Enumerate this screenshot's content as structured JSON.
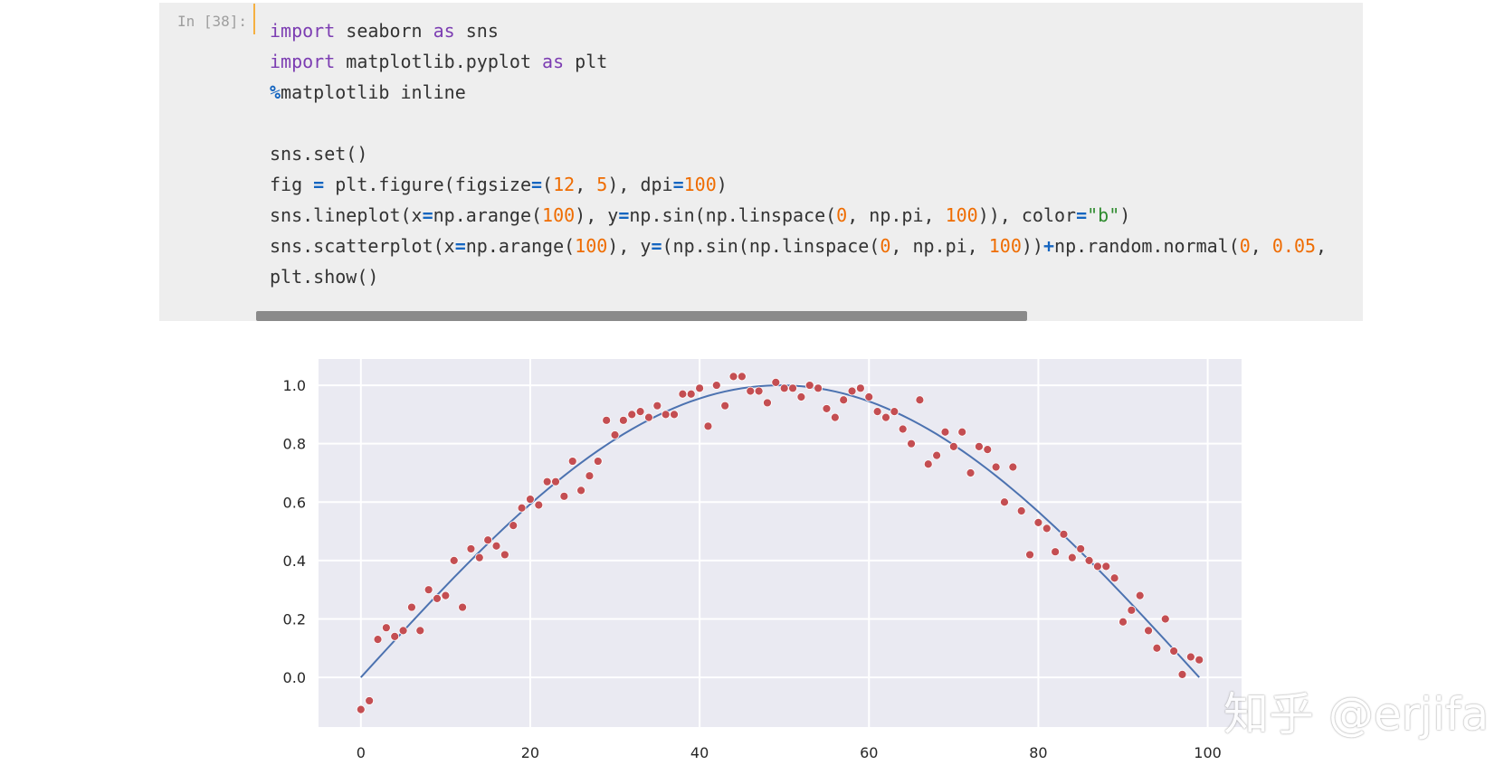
{
  "cell": {
    "prompt": "In [38]:",
    "code_lines": [
      [
        {
          "t": "import",
          "c": "kw"
        },
        {
          "t": " seaborn "
        },
        {
          "t": "as",
          "c": "kw"
        },
        {
          "t": " sns"
        }
      ],
      [
        {
          "t": "import",
          "c": "kw"
        },
        {
          "t": " matplotlib.pyplot "
        },
        {
          "t": "as",
          "c": "kw"
        },
        {
          "t": " plt"
        }
      ],
      [
        {
          "t": "%",
          "c": "op"
        },
        {
          "t": "matplotlib inline"
        }
      ],
      [],
      [
        {
          "t": "sns.set()"
        }
      ],
      [
        {
          "t": "fig "
        },
        {
          "t": "=",
          "c": "op"
        },
        {
          "t": " plt.figure(figsize"
        },
        {
          "t": "=",
          "c": "op"
        },
        {
          "t": "("
        },
        {
          "t": "12",
          "c": "num"
        },
        {
          "t": ", "
        },
        {
          "t": "5",
          "c": "num"
        },
        {
          "t": "), dpi"
        },
        {
          "t": "=",
          "c": "op"
        },
        {
          "t": "100",
          "c": "num"
        },
        {
          "t": ")"
        }
      ],
      [
        {
          "t": "sns.lineplot(x"
        },
        {
          "t": "=",
          "c": "op"
        },
        {
          "t": "np.arange("
        },
        {
          "t": "100",
          "c": "num"
        },
        {
          "t": "), y"
        },
        {
          "t": "=",
          "c": "op"
        },
        {
          "t": "np.sin(np.linspace("
        },
        {
          "t": "0",
          "c": "num"
        },
        {
          "t": ", np.pi, "
        },
        {
          "t": "100",
          "c": "num"
        },
        {
          "t": ")), color"
        },
        {
          "t": "=",
          "c": "op"
        },
        {
          "t": "\"b\"",
          "c": "str"
        },
        {
          "t": ")"
        }
      ],
      [
        {
          "t": "sns.scatterplot(x"
        },
        {
          "t": "=",
          "c": "op"
        },
        {
          "t": "np.arange("
        },
        {
          "t": "100",
          "c": "num"
        },
        {
          "t": "), y"
        },
        {
          "t": "=",
          "c": "op"
        },
        {
          "t": "(np.sin(np.linspace("
        },
        {
          "t": "0",
          "c": "num"
        },
        {
          "t": ", np.pi, "
        },
        {
          "t": "100",
          "c": "num"
        },
        {
          "t": "))"
        },
        {
          "t": "+",
          "c": "op"
        },
        {
          "t": "np.random.normal("
        },
        {
          "t": "0",
          "c": "num"
        },
        {
          "t": ", "
        },
        {
          "t": "0.05",
          "c": "num"
        },
        {
          "t": ","
        }
      ],
      [
        {
          "t": "plt.show()"
        }
      ]
    ]
  },
  "chart_data": {
    "type": "line+scatter",
    "xlim": [
      -5,
      104
    ],
    "ylim": [
      -0.17,
      1.09
    ],
    "x_ticks": [
      0,
      20,
      40,
      60,
      80,
      100
    ],
    "y_ticks": [
      0.0,
      0.2,
      0.4,
      0.6,
      0.8,
      1.0
    ],
    "x_tick_labels": [
      "0",
      "20",
      "40",
      "60",
      "80",
      "100"
    ],
    "y_tick_labels": [
      "0.0",
      "0.2",
      "0.4",
      "0.6",
      "0.8",
      "1.0"
    ],
    "grid": true,
    "background": "#eaeaf2",
    "line": {
      "color": "#4c72b0",
      "x": "0..99",
      "y": "sin(linspace(0, pi, 100))"
    },
    "scatter": {
      "color": "#c44e52",
      "points": [
        [
          0,
          -0.11
        ],
        [
          1,
          -0.08
        ],
        [
          2,
          0.13
        ],
        [
          3,
          0.17
        ],
        [
          4,
          0.14
        ],
        [
          5,
          0.16
        ],
        [
          6,
          0.24
        ],
        [
          7,
          0.16
        ],
        [
          8,
          0.3
        ],
        [
          9,
          0.27
        ],
        [
          10,
          0.28
        ],
        [
          11,
          0.4
        ],
        [
          12,
          0.24
        ],
        [
          13,
          0.44
        ],
        [
          14,
          0.41
        ],
        [
          15,
          0.47
        ],
        [
          16,
          0.45
        ],
        [
          17,
          0.42
        ],
        [
          18,
          0.52
        ],
        [
          19,
          0.58
        ],
        [
          20,
          0.61
        ],
        [
          21,
          0.59
        ],
        [
          22,
          0.67
        ],
        [
          23,
          0.67
        ],
        [
          24,
          0.62
        ],
        [
          25,
          0.74
        ],
        [
          26,
          0.64
        ],
        [
          27,
          0.69
        ],
        [
          28,
          0.74
        ],
        [
          29,
          0.88
        ],
        [
          30,
          0.83
        ],
        [
          31,
          0.88
        ],
        [
          32,
          0.9
        ],
        [
          33,
          0.91
        ],
        [
          34,
          0.89
        ],
        [
          35,
          0.93
        ],
        [
          36,
          0.9
        ],
        [
          37,
          0.9
        ],
        [
          38,
          0.97
        ],
        [
          39,
          0.97
        ],
        [
          40,
          0.99
        ],
        [
          41,
          0.86
        ],
        [
          42,
          1.0
        ],
        [
          43,
          0.93
        ],
        [
          44,
          1.03
        ],
        [
          45,
          1.03
        ],
        [
          46,
          0.98
        ],
        [
          47,
          0.98
        ],
        [
          48,
          0.94
        ],
        [
          49,
          1.01
        ],
        [
          50,
          0.99
        ],
        [
          51,
          0.99
        ],
        [
          52,
          0.96
        ],
        [
          53,
          1.0
        ],
        [
          54,
          0.99
        ],
        [
          55,
          0.92
        ],
        [
          56,
          0.89
        ],
        [
          57,
          0.95
        ],
        [
          58,
          0.98
        ],
        [
          59,
          0.99
        ],
        [
          60,
          0.96
        ],
        [
          61,
          0.91
        ],
        [
          62,
          0.89
        ],
        [
          63,
          0.91
        ],
        [
          64,
          0.85
        ],
        [
          65,
          0.8
        ],
        [
          66,
          0.95
        ],
        [
          67,
          0.73
        ],
        [
          68,
          0.76
        ],
        [
          69,
          0.84
        ],
        [
          70,
          0.79
        ],
        [
          71,
          0.84
        ],
        [
          72,
          0.7
        ],
        [
          73,
          0.79
        ],
        [
          74,
          0.78
        ],
        [
          75,
          0.72
        ],
        [
          76,
          0.6
        ],
        [
          77,
          0.72
        ],
        [
          78,
          0.57
        ],
        [
          79,
          0.42
        ],
        [
          80,
          0.53
        ],
        [
          81,
          0.51
        ],
        [
          82,
          0.43
        ],
        [
          83,
          0.49
        ],
        [
          84,
          0.41
        ],
        [
          85,
          0.44
        ],
        [
          86,
          0.4
        ],
        [
          87,
          0.38
        ],
        [
          88,
          0.38
        ],
        [
          89,
          0.34
        ],
        [
          90,
          0.19
        ],
        [
          91,
          0.23
        ],
        [
          92,
          0.28
        ],
        [
          93,
          0.16
        ],
        [
          94,
          0.1
        ],
        [
          95,
          0.2
        ],
        [
          96,
          0.09
        ],
        [
          97,
          0.01
        ],
        [
          98,
          0.07
        ],
        [
          99,
          0.06
        ]
      ]
    }
  },
  "watermark": {
    "text": "知乎 @erjifa"
  }
}
